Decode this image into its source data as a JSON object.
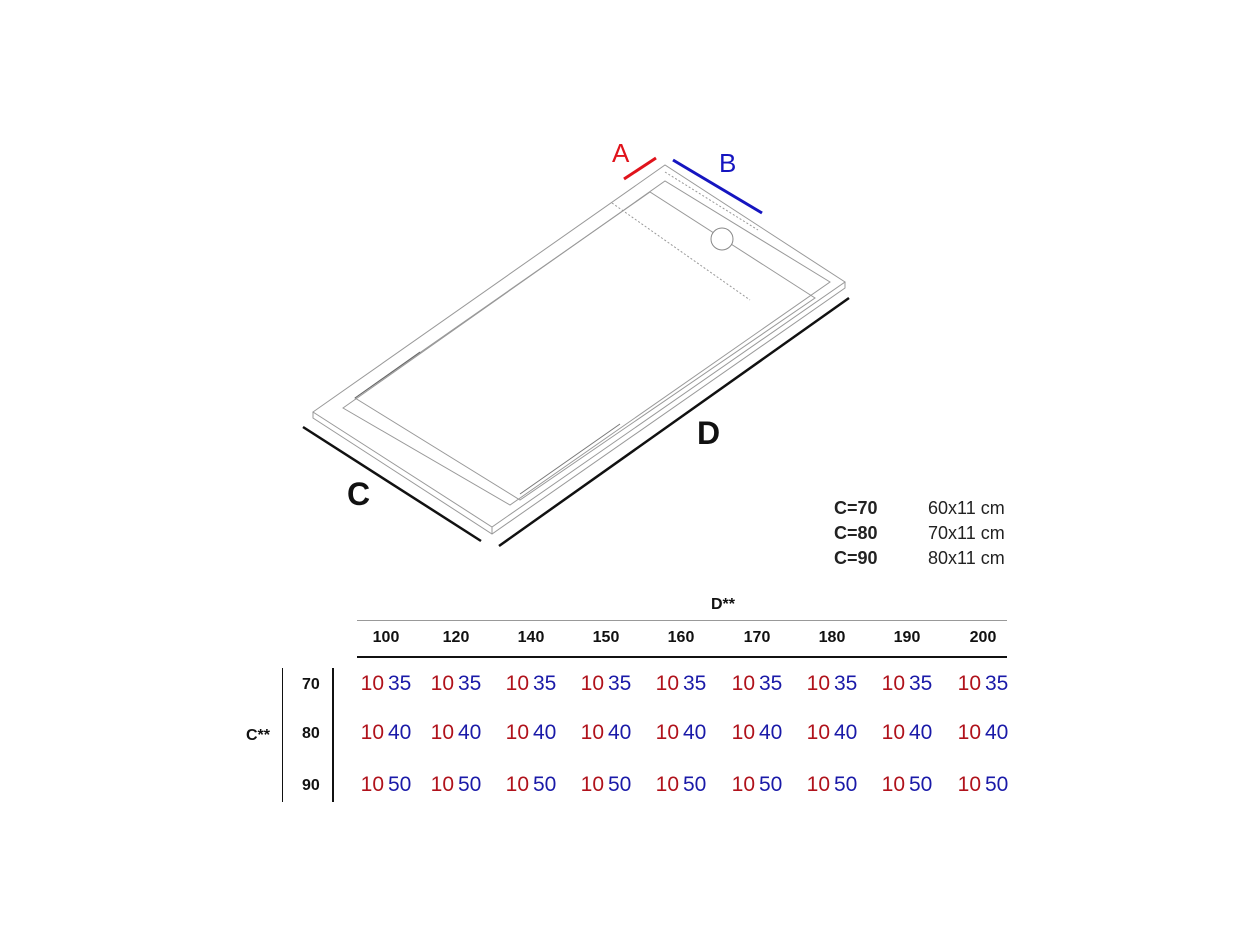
{
  "diagram": {
    "labels": {
      "a": "A",
      "b": "B",
      "c": "C",
      "d": "D"
    },
    "colors": {
      "a": "#e0131b",
      "b": "#1515c0",
      "outline": "#888888"
    }
  },
  "legend": [
    {
      "key": "C=70",
      "value": "60x11 cm"
    },
    {
      "key": "C=80",
      "value": "70x11 cm"
    },
    {
      "key": "C=90",
      "value": "80x11 cm"
    }
  ],
  "table": {
    "col_group_label": "D**",
    "row_group_label": "C**",
    "columns": [
      "100",
      "120",
      "140",
      "150",
      "160",
      "170",
      "180",
      "190",
      "200"
    ],
    "rows": [
      {
        "label": "70",
        "cells": [
          [
            "10",
            "35"
          ],
          [
            "10",
            "35"
          ],
          [
            "10",
            "35"
          ],
          [
            "10",
            "35"
          ],
          [
            "10",
            "35"
          ],
          [
            "10",
            "35"
          ],
          [
            "10",
            "35"
          ],
          [
            "10",
            "35"
          ],
          [
            "10",
            "35"
          ]
        ]
      },
      {
        "label": "80",
        "cells": [
          [
            "10",
            "40"
          ],
          [
            "10",
            "40"
          ],
          [
            "10",
            "40"
          ],
          [
            "10",
            "40"
          ],
          [
            "10",
            "40"
          ],
          [
            "10",
            "40"
          ],
          [
            "10",
            "40"
          ],
          [
            "10",
            "40"
          ],
          [
            "10",
            "40"
          ]
        ]
      },
      {
        "label": "90",
        "cells": [
          [
            "10",
            "50"
          ],
          [
            "10",
            "50"
          ],
          [
            "10",
            "50"
          ],
          [
            "10",
            "50"
          ],
          [
            "10",
            "50"
          ],
          [
            "10",
            "50"
          ],
          [
            "10",
            "50"
          ],
          [
            "10",
            "50"
          ],
          [
            "10",
            "50"
          ]
        ]
      }
    ]
  }
}
